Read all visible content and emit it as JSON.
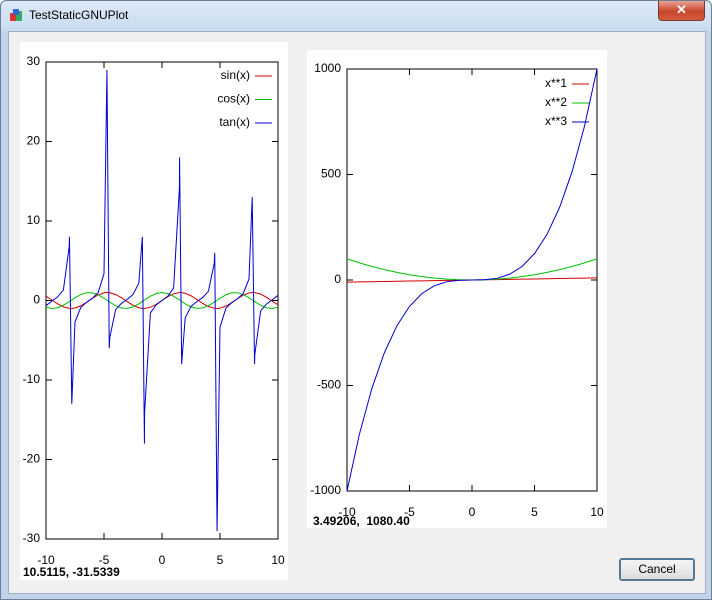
{
  "window": {
    "title": "TestStaticGNUPlot",
    "cancel_button": "Cancel"
  },
  "cursor_readouts": [
    "10.5115, -31.5339",
    "3.49206,  1080.40"
  ],
  "chart_data": [
    {
      "type": "line",
      "x": [
        -10,
        -9.5,
        -9,
        -8.5,
        -8,
        -7.978,
        -7.777,
        -7.5,
        -7,
        -6.5,
        -6,
        -5.5,
        -5,
        -4.746,
        -4.547,
        -4.5,
        -4,
        -3.5,
        -3,
        -2.5,
        -2,
        -1.695,
        -1.515,
        -1.5,
        -1,
        -0.5,
        0,
        0.5,
        1,
        1.5,
        1.515,
        1.695,
        2,
        2.5,
        3,
        3.5,
        4,
        4.5,
        4.547,
        4.746,
        5,
        5.5,
        6,
        6.5,
        7,
        7.5,
        7.777,
        7.978,
        8,
        8.5,
        9,
        9.5,
        10
      ],
      "series": [
        {
          "name": "sin(x)",
          "color": "#d00000",
          "values": [
            0.54,
            0.08,
            -0.41,
            -0.8,
            -0.99,
            -0.99,
            -1,
            -0.94,
            -0.66,
            -0.22,
            0.28,
            0.71,
            0.96,
            1,
            0.99,
            0.98,
            0.76,
            0.35,
            -0.14,
            -0.6,
            -0.91,
            -0.99,
            -1,
            -1,
            -0.84,
            -0.48,
            0,
            0.48,
            0.84,
            1,
            1,
            0.99,
            0.91,
            0.6,
            0.14,
            -0.35,
            -0.76,
            -0.98,
            -0.99,
            -1,
            -0.96,
            -0.71,
            -0.28,
            0.22,
            0.66,
            0.94,
            1,
            0.99,
            0.99,
            0.8,
            0.41,
            -0.08,
            -0.54
          ]
        },
        {
          "name": "cos(x)",
          "color": "#00c000",
          "values": [
            -0.84,
            -1,
            -0.91,
            -0.6,
            -0.15,
            -0.12,
            0.08,
            0.35,
            0.75,
            0.98,
            0.96,
            0.71,
            0.28,
            0.03,
            -0.16,
            -0.21,
            -0.65,
            -0.94,
            -0.99,
            -0.8,
            -0.42,
            -0.12,
            0.06,
            0.07,
            0.54,
            0.88,
            1,
            0.88,
            0.54,
            0.07,
            0.06,
            -0.12,
            -0.42,
            -0.8,
            -0.99,
            -0.94,
            -0.65,
            -0.21,
            -0.16,
            0.03,
            0.28,
            0.71,
            0.96,
            0.98,
            0.75,
            0.35,
            0.08,
            -0.12,
            -0.15,
            -0.6,
            -0.91,
            -1,
            -0.84
          ]
        },
        {
          "name": "tan(x)",
          "color": "#0000d0",
          "values": [
            -0.65,
            -0.08,
            0.45,
            1.33,
            6.8,
            8,
            -13,
            -2.71,
            -0.87,
            -0.22,
            0.29,
            1,
            3.38,
            29,
            -6,
            -4.64,
            -1.16,
            -0.37,
            0.14,
            0.75,
            2.19,
            8,
            -18,
            -14.1,
            -1.56,
            -0.55,
            0,
            0.55,
            1.56,
            14.1,
            18,
            -8,
            -2.19,
            -0.75,
            -0.14,
            0.37,
            1.16,
            4.64,
            6,
            -29,
            -3.38,
            -1,
            -0.29,
            0.22,
            0.87,
            2.71,
            13,
            -8,
            -6.8,
            -1.33,
            -0.45,
            0.08,
            0.65
          ]
        }
      ],
      "xlim": [
        -10,
        10
      ],
      "xticks": [
        -10,
        -5,
        0,
        5,
        10
      ],
      "ylim": [
        -30,
        30
      ],
      "yticks": [
        -30,
        -20,
        -10,
        0,
        10,
        20,
        30
      ],
      "grid": false,
      "legend": "top right"
    },
    {
      "type": "line",
      "x": [
        -10,
        -9,
        -8,
        -7,
        -6,
        -5,
        -4,
        -3,
        -2,
        -1,
        0,
        1,
        2,
        3,
        4,
        5,
        6,
        7,
        8,
        9,
        10
      ],
      "series": [
        {
          "name": "x**1",
          "color": "#d00000",
          "values": [
            -10,
            -9,
            -8,
            -7,
            -6,
            -5,
            -4,
            -3,
            -2,
            -1,
            0,
            1,
            2,
            3,
            4,
            5,
            6,
            7,
            8,
            9,
            10
          ]
        },
        {
          "name": "x**2",
          "color": "#00c000",
          "values": [
            100,
            81,
            64,
            49,
            36,
            25,
            16,
            9,
            4,
            1,
            0,
            1,
            4,
            9,
            16,
            25,
            36,
            49,
            64,
            81,
            100
          ]
        },
        {
          "name": "x**3",
          "color": "#0000d0",
          "values": [
            -1000,
            -729,
            -512,
            -343,
            -216,
            -125,
            -64,
            -27,
            -8,
            -1,
            0,
            1,
            8,
            27,
            64,
            125,
            216,
            343,
            512,
            729,
            1000
          ]
        }
      ],
      "xlim": [
        -10,
        10
      ],
      "xticks": [
        -10,
        -5,
        0,
        5,
        10
      ],
      "ylim": [
        -1000,
        1000
      ],
      "yticks": [
        -1000,
        -500,
        0,
        500,
        1000
      ],
      "grid": false,
      "legend": "top right"
    }
  ]
}
